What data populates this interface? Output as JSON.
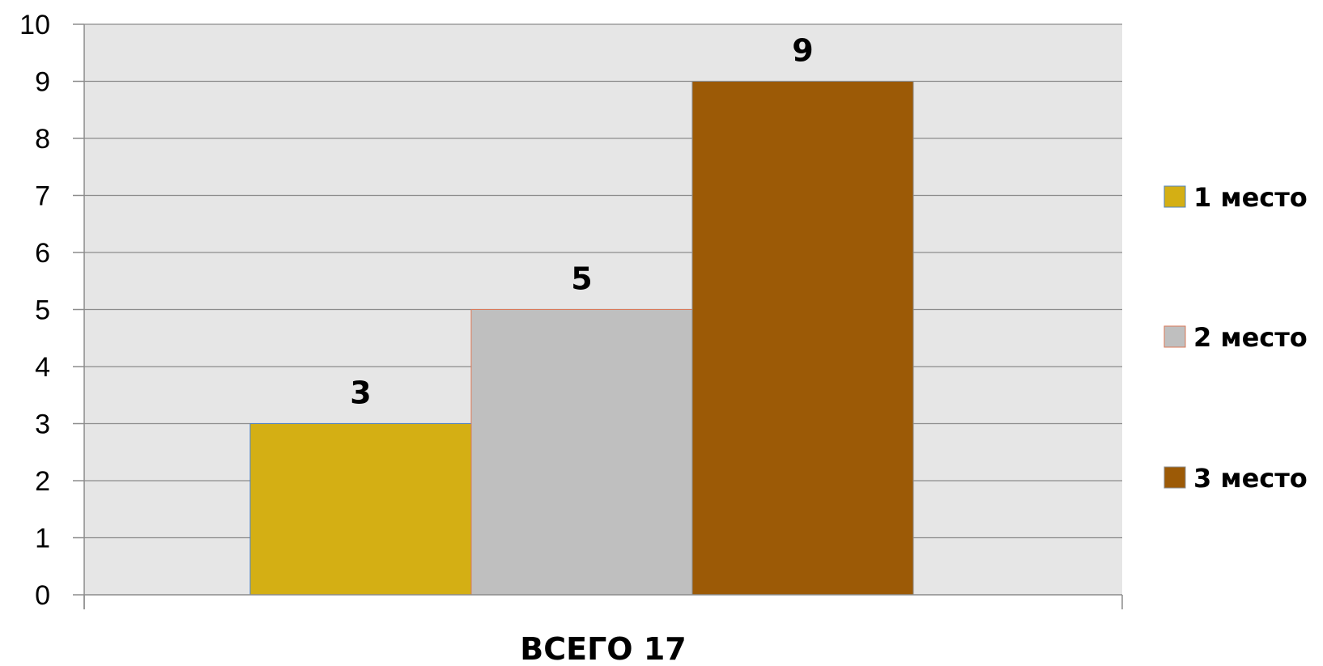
{
  "chart_data": {
    "type": "bar",
    "categories": [
      "ВСЕГО 17"
    ],
    "series": [
      {
        "name": "1 место",
        "values": [
          3
        ],
        "color": "#D4AF14"
      },
      {
        "name": "2 место",
        "values": [
          5
        ],
        "color": "#BFBFBF"
      },
      {
        "name": "3 место",
        "values": [
          9
        ],
        "color": "#9C5A06"
      }
    ],
    "ylim": [
      0,
      10
    ],
    "yticks": [
      0,
      1,
      2,
      3,
      4,
      5,
      6,
      7,
      8,
      9,
      10
    ],
    "grid": true,
    "plot_background": "#E6E6E6",
    "legend_position": "right",
    "data_labels": true
  }
}
